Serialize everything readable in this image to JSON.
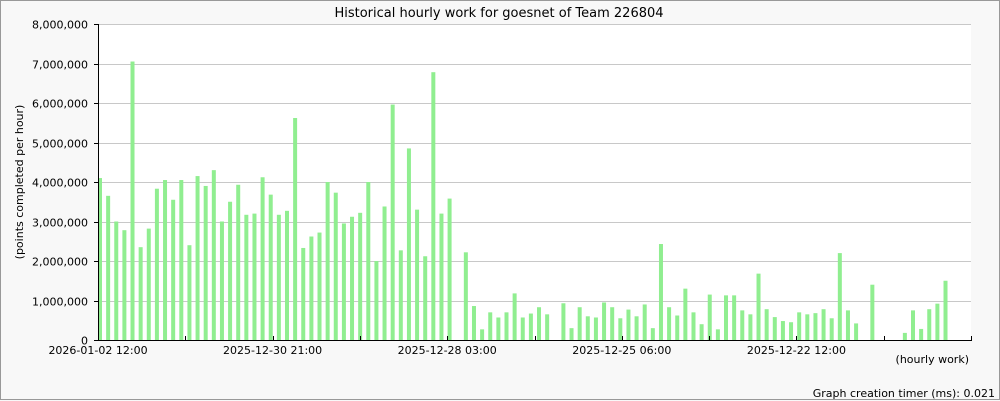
{
  "chart_data": {
    "type": "bar",
    "title": "Historical hourly work for goesnet of Team 226804",
    "xlabel": "(hourly work)",
    "ylabel": "(points completed per hour)",
    "ylim": [
      0,
      8000000
    ],
    "yticks": [
      "0",
      "1,000,000",
      "2,000,000",
      "3,000,000",
      "4,000,000",
      "5,000,000",
      "6,000,000",
      "7,000,000",
      "8,000,000"
    ],
    "xtick_labels": [
      "2026-01-02 12:00",
      "2025-12-30 21:00",
      "2025-12-28 03:00",
      "2025-12-25 06:00",
      "2025-12-22 12:00"
    ],
    "grid": true,
    "bar_color": "#90ee90",
    "values": [
      4100000,
      3650000,
      3000000,
      2780000,
      7050000,
      2350000,
      2820000,
      3830000,
      4050000,
      3550000,
      4050000,
      2400000,
      4150000,
      3900000,
      4300000,
      3000000,
      3500000,
      3930000,
      3170000,
      3200000,
      4120000,
      3680000,
      3170000,
      3270000,
      5620000,
      2330000,
      2620000,
      2720000,
      4000000,
      3730000,
      2950000,
      3120000,
      3220000,
      4000000,
      2000000,
      3380000,
      5960000,
      2270000,
      4850000,
      3300000,
      2120000,
      6780000,
      3200000,
      3580000,
      0,
      2220000,
      860000,
      270000,
      700000,
      570000,
      700000,
      1180000,
      570000,
      670000,
      830000,
      650000,
      0,
      930000,
      300000,
      830000,
      600000,
      570000,
      950000,
      830000,
      550000,
      770000,
      600000,
      900000,
      300000,
      2430000,
      830000,
      620000,
      1300000,
      700000,
      400000,
      1150000,
      270000,
      1130000,
      1130000,
      750000,
      650000,
      1680000,
      780000,
      580000,
      480000,
      450000,
      700000,
      650000,
      680000,
      780000,
      550000,
      2200000,
      750000,
      420000,
      0,
      1400000,
      0,
      0,
      0,
      180000,
      750000,
      280000,
      780000,
      920000,
      1500000
    ]
  },
  "footer": {
    "timer": "Graph creation timer (ms): 0.021"
  }
}
